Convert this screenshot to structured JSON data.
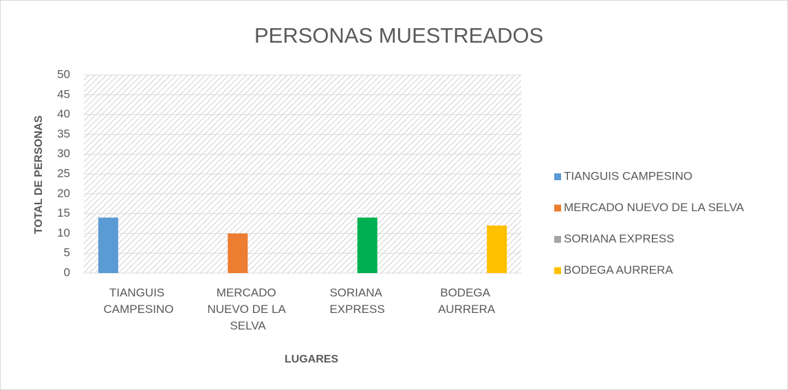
{
  "chart_data": {
    "type": "bar",
    "title": "PERSONAS MUESTREADOS",
    "x_label": "LUGARES",
    "y_label": "TOTAL DE PERSONAS",
    "categories": [
      "TIANGUIS CAMPESINO",
      "MERCADO NUEVO DE LA SELVA",
      "SORIANA EXPRESS",
      "BODEGA AURRERA"
    ],
    "series": [
      {
        "name": "TIANGUIS CAMPESINO",
        "color": "#5b9bd5",
        "values": [
          14,
          null,
          null,
          null
        ]
      },
      {
        "name": "MERCADO NUEVO DE LA SELVA",
        "color": "#ed7d31",
        "values": [
          null,
          10,
          null,
          null
        ]
      },
      {
        "name": "SORIANA EXPRESS",
        "color": "#a5a5a5",
        "bar_color": "#00b050",
        "values": [
          null,
          null,
          14,
          null
        ]
      },
      {
        "name": "BODEGA AURRERA",
        "color": "#ffc000",
        "values": [
          null,
          null,
          null,
          12
        ]
      }
    ],
    "ylim": [
      0,
      50
    ],
    "yticks": [
      0,
      5,
      10,
      15,
      20,
      25,
      30,
      35,
      40,
      45,
      50
    ],
    "grid": true,
    "legend": "right"
  }
}
